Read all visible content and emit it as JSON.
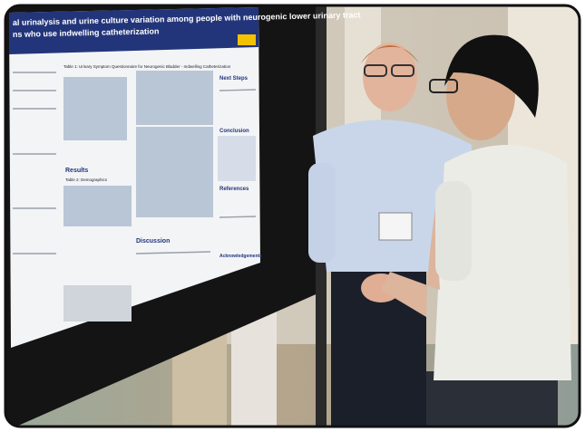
{
  "poster": {
    "title": [
      "al urinalysis and urine culture variation among people with neurogenic lower urinary tract",
      "ns who use indwelling catheterization"
    ],
    "tables": [
      "Table 1: Urinary Symptom Questionnaire for Neurogenic Bladder - Indwelling Catheterization",
      "Table 2: Demographics"
    ],
    "headings": {
      "results": "Results",
      "discussion": "Discussion",
      "next_steps": "Next Steps",
      "conclusion": "Conclusion",
      "references": "References",
      "acknowledgements": "Acknowledgements"
    }
  }
}
